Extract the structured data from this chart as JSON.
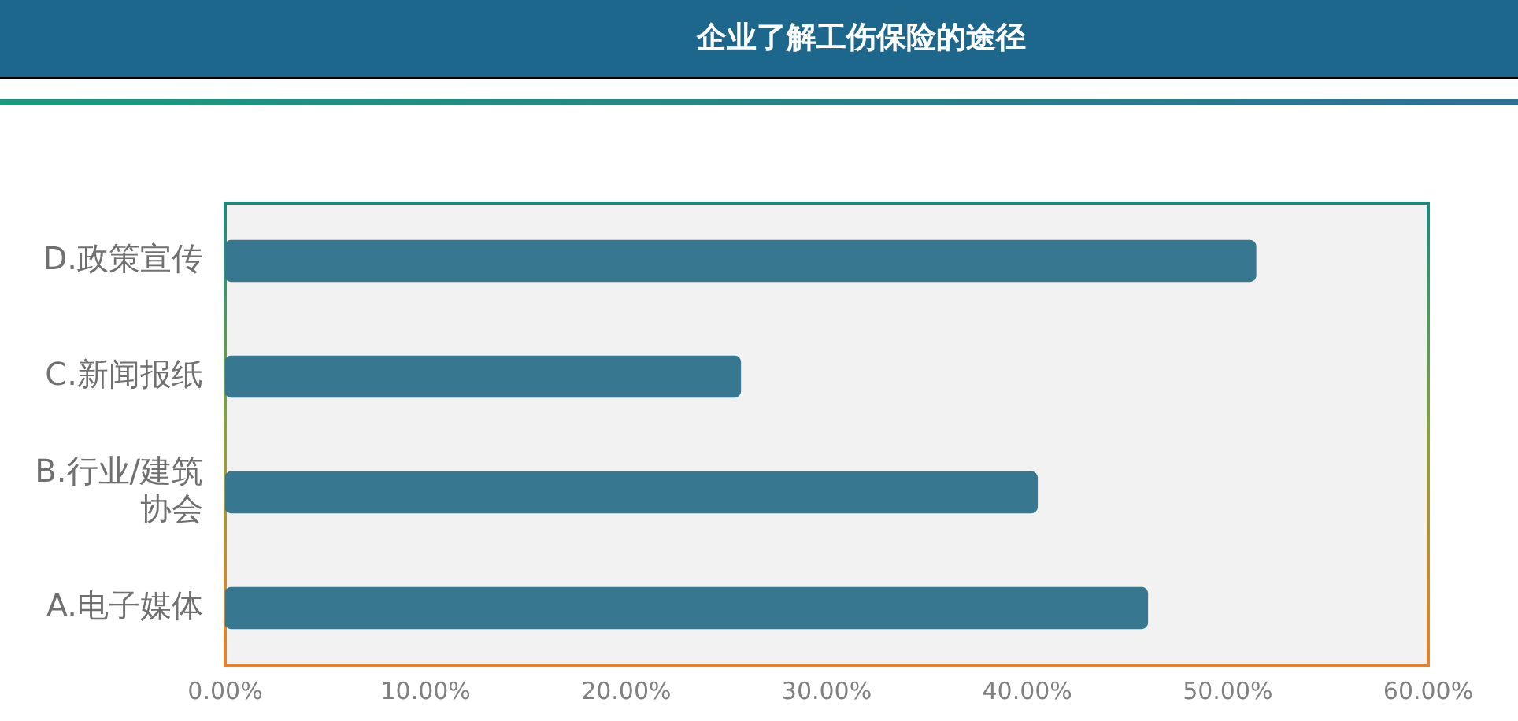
{
  "chart_data": {
    "type": "bar",
    "orientation": "horizontal",
    "title": "企业了解工伤保险的途径",
    "categories": [
      "D.政策宣传",
      "C.新闻报纸",
      "B.行业/建筑协会",
      "A.电子媒体"
    ],
    "values": [
      51.4,
      25.7,
      40.5,
      46.0
    ],
    "color": "#37778f",
    "xlim": [
      0,
      60
    ],
    "xticks": [
      {
        "value": 0,
        "label": "0.00%"
      },
      {
        "value": 10,
        "label": "10.00%"
      },
      {
        "value": 20,
        "label": "20.00%"
      },
      {
        "value": 30,
        "label": "30.00%"
      },
      {
        "value": 40,
        "label": "40.00%"
      },
      {
        "value": 50,
        "label": "50.00%"
      },
      {
        "value": 60,
        "label": "60.00%"
      }
    ],
    "grid": false,
    "legend": false
  }
}
